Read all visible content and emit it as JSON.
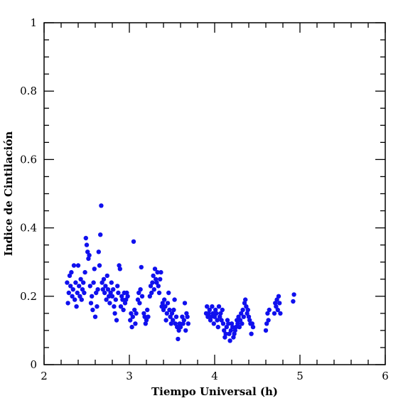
{
  "chart_data": {
    "type": "scatter",
    "title": "",
    "xlabel": "Tiempo Universal (h)",
    "ylabel": "Indice de Cintilación",
    "xlim": [
      2,
      6
    ],
    "ylim": [
      0,
      1
    ],
    "x_ticks": [
      2,
      3,
      4,
      5,
      6
    ],
    "x_tick_labels": [
      "2",
      "3",
      "4",
      "5",
      "6"
    ],
    "y_ticks": [
      0,
      0.2,
      0.4,
      0.6,
      0.8,
      1
    ],
    "y_tick_labels": [
      "0",
      "0.2",
      "0.4",
      "0.6",
      "0.8",
      "1"
    ],
    "grid": false,
    "marker_color": "#1010ee",
    "series": [
      {
        "points": [
          [
            2.27,
            0.24
          ],
          [
            2.28,
            0.18
          ],
          [
            2.29,
            0.21
          ],
          [
            2.3,
            0.26
          ],
          [
            2.31,
            0.23
          ],
          [
            2.32,
            0.27
          ],
          [
            2.33,
            0.2
          ],
          [
            2.34,
            0.22
          ],
          [
            2.35,
            0.29
          ],
          [
            2.36,
            0.19
          ],
          [
            2.37,
            0.24
          ],
          [
            2.38,
            0.17
          ],
          [
            2.39,
            0.21
          ],
          [
            2.4,
            0.29
          ],
          [
            2.41,
            0.23
          ],
          [
            2.42,
            0.2
          ],
          [
            2.43,
            0.25
          ],
          [
            2.44,
            0.19
          ],
          [
            2.45,
            0.22
          ],
          [
            2.46,
            0.24
          ],
          [
            2.47,
            0.21
          ],
          [
            2.48,
            0.27
          ],
          [
            2.49,
            0.37
          ],
          [
            2.5,
            0.35
          ],
          [
            2.51,
            0.33
          ],
          [
            2.52,
            0.31
          ],
          [
            2.53,
            0.32
          ],
          [
            2.54,
            0.23
          ],
          [
            2.55,
            0.18
          ],
          [
            2.56,
            0.2
          ],
          [
            2.57,
            0.16
          ],
          [
            2.58,
            0.24
          ],
          [
            2.59,
            0.28
          ],
          [
            2.6,
            0.14
          ],
          [
            2.61,
            0.21
          ],
          [
            2.62,
            0.17
          ],
          [
            2.63,
            0.22
          ],
          [
            2.64,
            0.33
          ],
          [
            2.65,
            0.29
          ],
          [
            2.66,
            0.38
          ],
          [
            2.67,
            0.465
          ],
          [
            2.68,
            0.24
          ],
          [
            2.69,
            0.22
          ],
          [
            2.7,
            0.25
          ],
          [
            2.71,
            0.21
          ],
          [
            2.72,
            0.23
          ],
          [
            2.73,
            0.19
          ],
          [
            2.74,
            0.26
          ],
          [
            2.75,
            0.22
          ],
          [
            2.76,
            0.2
          ],
          [
            2.77,
            0.18
          ],
          [
            2.78,
            0.21
          ],
          [
            2.79,
            0.24
          ],
          [
            2.8,
            0.2
          ],
          [
            2.81,
            0.22
          ],
          [
            2.82,
            0.17
          ],
          [
            2.83,
            0.15
          ],
          [
            2.84,
            0.19
          ],
          [
            2.85,
            0.13
          ],
          [
            2.86,
            0.23
          ],
          [
            2.87,
            0.21
          ],
          [
            2.88,
            0.29
          ],
          [
            2.89,
            0.28
          ],
          [
            2.9,
            0.17
          ],
          [
            2.91,
            0.2
          ],
          [
            2.92,
            0.19
          ],
          [
            2.93,
            0.16
          ],
          [
            2.94,
            0.21
          ],
          [
            2.95,
            0.18
          ],
          [
            2.96,
            0.19
          ],
          [
            2.97,
            0.21
          ],
          [
            2.98,
            0.2
          ],
          [
            3.01,
            0.13
          ],
          [
            3.02,
            0.15
          ],
          [
            3.03,
            0.11
          ],
          [
            3.04,
            0.14
          ],
          [
            3.05,
            0.36
          ],
          [
            3.06,
            0.16
          ],
          [
            3.07,
            0.12
          ],
          [
            3.08,
            0.15
          ],
          [
            3.1,
            0.19
          ],
          [
            3.11,
            0.21
          ],
          [
            3.12,
            0.18
          ],
          [
            3.13,
            0.22
          ],
          [
            3.14,
            0.285
          ],
          [
            3.15,
            0.2
          ],
          [
            3.17,
            0.15
          ],
          [
            3.18,
            0.14
          ],
          [
            3.19,
            0.12
          ],
          [
            3.2,
            0.13
          ],
          [
            3.21,
            0.16
          ],
          [
            3.22,
            0.14
          ],
          [
            3.24,
            0.2
          ],
          [
            3.25,
            0.23
          ],
          [
            3.26,
            0.21
          ],
          [
            3.27,
            0.24
          ],
          [
            3.28,
            0.26
          ],
          [
            3.29,
            0.22
          ],
          [
            3.3,
            0.28
          ],
          [
            3.31,
            0.25
          ],
          [
            3.32,
            0.24
          ],
          [
            3.33,
            0.27
          ],
          [
            3.34,
            0.23
          ],
          [
            3.35,
            0.21
          ],
          [
            3.36,
            0.25
          ],
          [
            3.37,
            0.27
          ],
          [
            3.38,
            0.17
          ],
          [
            3.39,
            0.18
          ],
          [
            3.4,
            0.16
          ],
          [
            3.41,
            0.19
          ],
          [
            3.42,
            0.17
          ],
          [
            3.43,
            0.13
          ],
          [
            3.44,
            0.15
          ],
          [
            3.45,
            0.18
          ],
          [
            3.46,
            0.21
          ],
          [
            3.47,
            0.16
          ],
          [
            3.48,
            0.14
          ],
          [
            3.49,
            0.12
          ],
          [
            3.5,
            0.15
          ],
          [
            3.51,
            0.13
          ],
          [
            3.52,
            0.16
          ],
          [
            3.53,
            0.19
          ],
          [
            3.54,
            0.12
          ],
          [
            3.55,
            0.14
          ],
          [
            3.56,
            0.11
          ],
          [
            3.57,
            0.075
          ],
          [
            3.58,
            0.1
          ],
          [
            3.59,
            0.12
          ],
          [
            3.6,
            0.11
          ],
          [
            3.62,
            0.14
          ],
          [
            3.63,
            0.12
          ],
          [
            3.64,
            0.13
          ],
          [
            3.65,
            0.18
          ],
          [
            3.66,
            0.1
          ],
          [
            3.67,
            0.15
          ],
          [
            3.68,
            0.14
          ],
          [
            3.69,
            0.12
          ],
          [
            3.9,
            0.15
          ],
          [
            3.91,
            0.17
          ],
          [
            3.92,
            0.14
          ],
          [
            3.93,
            0.15
          ],
          [
            3.94,
            0.16
          ],
          [
            3.95,
            0.13
          ],
          [
            3.96,
            0.14
          ],
          [
            3.97,
            0.17
          ],
          [
            3.98,
            0.15
          ],
          [
            3.99,
            0.12
          ],
          [
            4.0,
            0.14
          ],
          [
            4.01,
            0.16
          ],
          [
            4.02,
            0.15
          ],
          [
            4.03,
            0.13
          ],
          [
            4.04,
            0.11
          ],
          [
            4.05,
            0.17
          ],
          [
            4.06,
            0.14
          ],
          [
            4.07,
            0.15
          ],
          [
            4.08,
            0.13
          ],
          [
            4.09,
            0.16
          ],
          [
            4.1,
            0.12
          ],
          [
            4.11,
            0.1
          ],
          [
            4.12,
            0.08
          ],
          [
            4.13,
            0.09
          ],
          [
            4.14,
            0.11
          ],
          [
            4.15,
            0.13
          ],
          [
            4.16,
            0.12
          ],
          [
            4.17,
            0.09
          ],
          [
            4.18,
            0.07
          ],
          [
            4.19,
            0.1
          ],
          [
            4.2,
            0.12
          ],
          [
            4.21,
            0.11
          ],
          [
            4.22,
            0.08
          ],
          [
            4.23,
            0.09
          ],
          [
            4.24,
            0.1
          ],
          [
            4.25,
            0.11
          ],
          [
            4.26,
            0.13
          ],
          [
            4.27,
            0.12
          ],
          [
            4.28,
            0.14
          ],
          [
            4.29,
            0.11
          ],
          [
            4.3,
            0.13
          ],
          [
            4.31,
            0.15
          ],
          [
            4.32,
            0.12
          ],
          [
            4.33,
            0.16
          ],
          [
            4.34,
            0.14
          ],
          [
            4.35,
            0.18
          ],
          [
            4.36,
            0.19
          ],
          [
            4.37,
            0.17
          ],
          [
            4.38,
            0.15
          ],
          [
            4.39,
            0.16
          ],
          [
            4.4,
            0.14
          ],
          [
            4.41,
            0.13
          ],
          [
            4.42,
            0.12
          ],
          [
            4.43,
            0.09
          ],
          [
            4.44,
            0.12
          ],
          [
            4.45,
            0.11
          ],
          [
            4.6,
            0.1
          ],
          [
            4.61,
            0.12
          ],
          [
            4.62,
            0.15
          ],
          [
            4.63,
            0.13
          ],
          [
            4.64,
            0.16
          ],
          [
            4.7,
            0.15
          ],
          [
            4.71,
            0.18
          ],
          [
            4.72,
            0.17
          ],
          [
            4.73,
            0.19
          ],
          [
            4.74,
            0.16
          ],
          [
            4.75,
            0.2
          ],
          [
            4.76,
            0.18
          ],
          [
            4.77,
            0.15
          ],
          [
            4.92,
            0.185
          ],
          [
            4.93,
            0.205
          ]
        ]
      }
    ]
  }
}
